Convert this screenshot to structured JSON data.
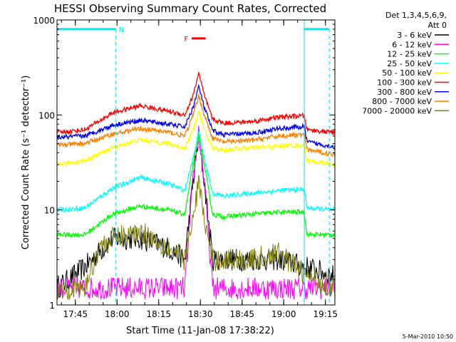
{
  "chart_data": {
    "type": "line",
    "title": "HESSI Observing Summary Count Rates, Corrected",
    "xlabel": "Start Time (11-Jan-08 17:38:22)",
    "ylabel": "Corrected Count Rate (s⁻¹ detector⁻¹)",
    "yscale": "log",
    "ylim": [
      1,
      1000
    ],
    "xlim_minutes_after_start": [
      0,
      100
    ],
    "x_tick_labels": [
      "17:45",
      "18:00",
      "18:15",
      "18:30",
      "18:45",
      "19:00",
      "19:15"
    ],
    "x_tick_minutes_after_start": [
      6.6,
      21.6,
      36.6,
      51.6,
      66.6,
      81.6,
      96.6
    ],
    "y_tick_labels": [
      "1",
      "10",
      "100",
      "1000"
    ],
    "y_tick_values": [
      1,
      10,
      100,
      1000
    ],
    "legend_header": [
      "Det 1,3,4,5,6,9,",
      "Att 0"
    ],
    "legend_placement": "right-outside",
    "annotations": {
      "night_marker": "N",
      "flare_marker": "F",
      "footer_date": "5-Mar-2010 10:50"
    },
    "markers": {
      "night_intervals_minutes": [
        [
          0,
          21.2
        ],
        [
          89,
          98
        ]
      ],
      "flare_interval_minutes": [
        48.5,
        53.5
      ],
      "marker_level": 800
    },
    "series": [
      {
        "name": "3 - 6 keV",
        "color": "#000000",
        "x": [
          0,
          10,
          20,
          30,
          40,
          46,
          49,
          51,
          53,
          56,
          60,
          70,
          80,
          90,
          100
        ],
        "y": [
          1.5,
          2.5,
          5,
          5,
          4,
          3,
          20,
          60,
          20,
          3,
          3,
          3,
          3,
          2.5,
          2
        ]
      },
      {
        "name": "6 - 12 keV",
        "color": "#ff00ff",
        "x": [
          0,
          10,
          20,
          30,
          40,
          46,
          49,
          51,
          53,
          56,
          60,
          70,
          80,
          89,
          90,
          100
        ],
        "y": [
          1.5,
          1.5,
          1.5,
          1.5,
          1.5,
          1.5,
          20,
          65,
          20,
          1.5,
          1.5,
          1.5,
          1.5,
          1.5,
          1.5,
          1.5
        ]
      },
      {
        "name": "12 - 25 keV",
        "color": "#00ff00",
        "x": [
          0,
          10,
          20,
          30,
          40,
          46,
          49,
          51,
          53,
          56,
          60,
          70,
          80,
          89,
          90,
          100
        ],
        "y": [
          5.5,
          5.5,
          9,
          11,
          10,
          9,
          30,
          60,
          30,
          9,
          8.5,
          9,
          9.5,
          9.5,
          5.5,
          5.5
        ]
      },
      {
        "name": "25 - 50 keV",
        "color": "#00ffff",
        "x": [
          0,
          10,
          20,
          30,
          40,
          46,
          49,
          51,
          53,
          56,
          60,
          70,
          80,
          89,
          90,
          100
        ],
        "y": [
          10,
          10.5,
          17,
          22,
          19,
          16,
          35,
          68,
          35,
          15,
          14,
          15,
          16,
          16.5,
          10.5,
          10
        ]
      },
      {
        "name": "50 - 100 keV",
        "color": "#ffff00",
        "x": [
          0,
          10,
          20,
          30,
          40,
          46,
          49,
          51,
          53,
          56,
          60,
          70,
          80,
          89,
          90,
          100
        ],
        "y": [
          30,
          33,
          45,
          55,
          50,
          45,
          70,
          110,
          70,
          45,
          43,
          45,
          47,
          48,
          33,
          30
        ]
      },
      {
        "name": "100 - 300 keV",
        "color": "#ff0000",
        "x": [
          0,
          10,
          20,
          30,
          40,
          46,
          49,
          51,
          53,
          56,
          60,
          70,
          80,
          89,
          90,
          100
        ],
        "y": [
          65,
          70,
          105,
          125,
          110,
          100,
          160,
          280,
          160,
          90,
          82,
          85,
          95,
          98,
          70,
          65
        ]
      },
      {
        "name": "300 - 800 keV",
        "color": "#0000ff",
        "x": [
          0,
          10,
          20,
          30,
          40,
          46,
          49,
          51,
          53,
          56,
          60,
          70,
          80,
          89,
          90,
          100
        ],
        "y": [
          58,
          60,
          78,
          88,
          80,
          75,
          120,
          200,
          120,
          68,
          62,
          64,
          72,
          75,
          52,
          46
        ]
      },
      {
        "name": "800 - 7000 keV",
        "color": "#ff8000",
        "x": [
          0,
          10,
          20,
          30,
          40,
          46,
          49,
          51,
          53,
          56,
          60,
          70,
          80,
          89,
          90,
          100
        ],
        "y": [
          48,
          50,
          63,
          72,
          66,
          60,
          100,
          160,
          100,
          57,
          52,
          54,
          60,
          62,
          43,
          38
        ]
      },
      {
        "name": "7000 - 20000 keV",
        "color": "#808000",
        "x": [
          0,
          10,
          15,
          20,
          30,
          40,
          46,
          49,
          51,
          53,
          56,
          60,
          70,
          80,
          90,
          100
        ],
        "y": [
          1.5,
          1.5,
          4,
          5,
          6,
          4,
          3,
          8,
          20,
          8,
          3,
          3,
          3,
          3.5,
          2,
          1.5
        ]
      }
    ]
  }
}
